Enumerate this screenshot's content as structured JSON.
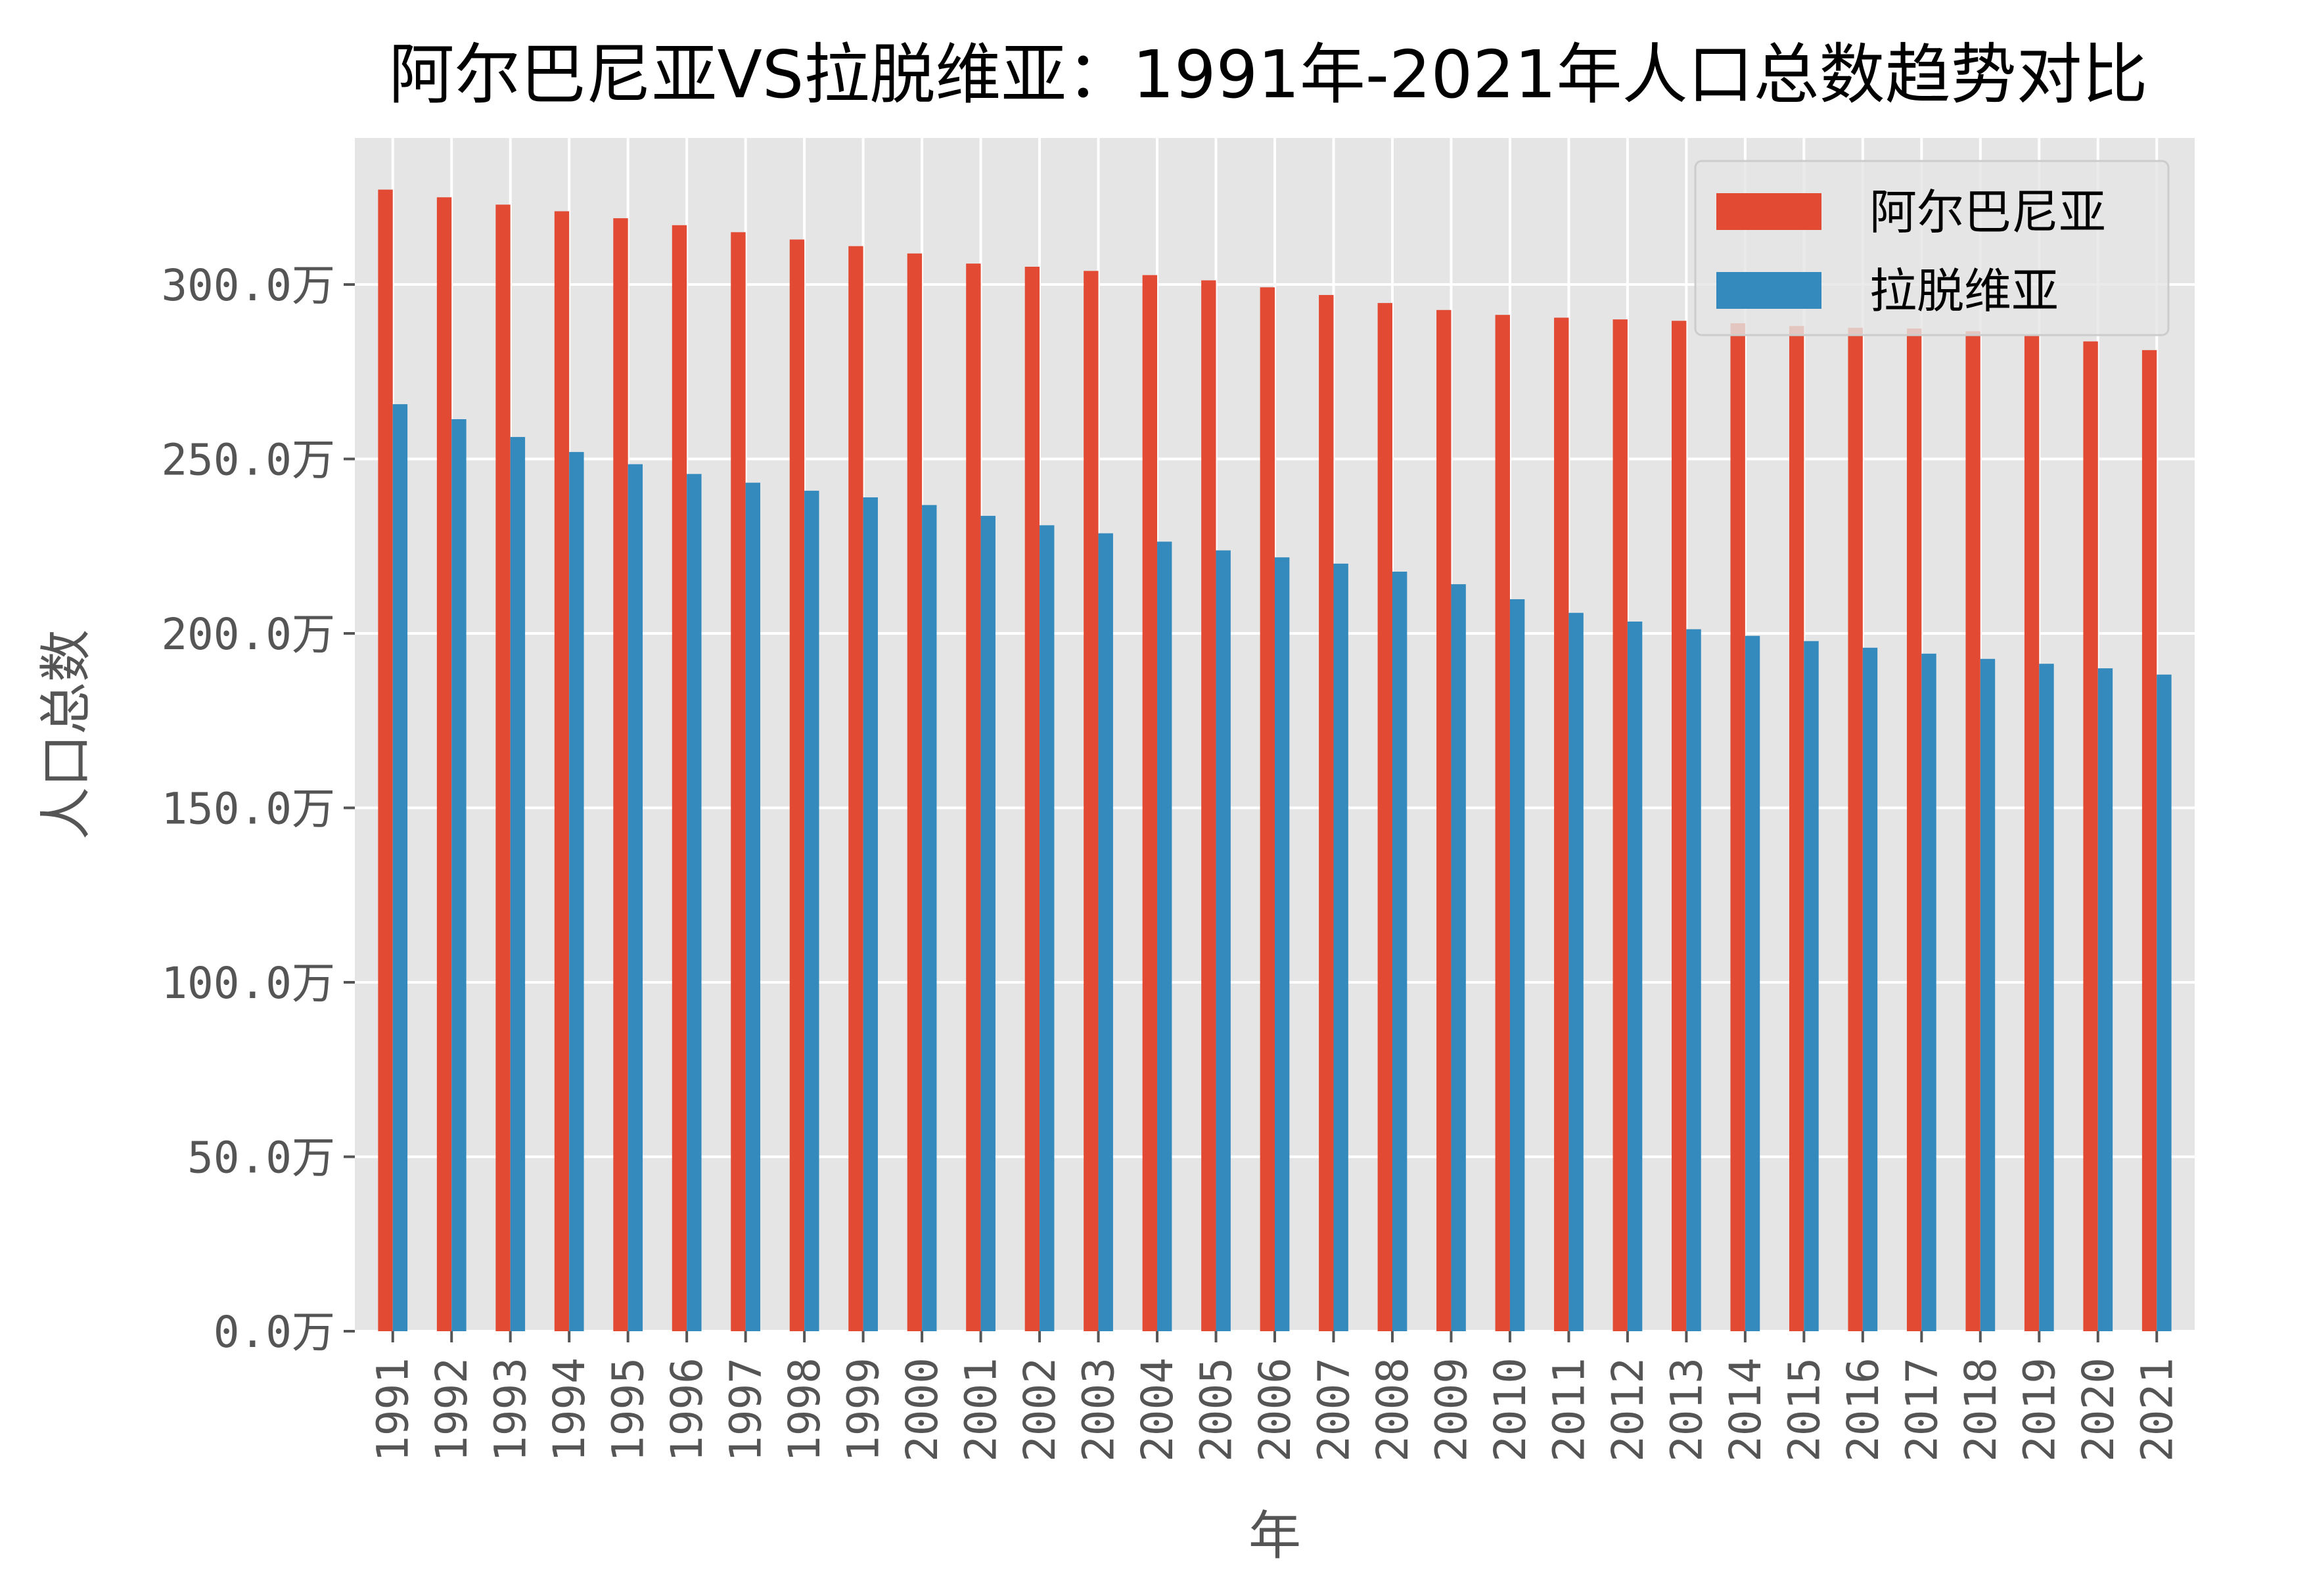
{
  "chart_data": {
    "type": "bar",
    "title": "阿尔巴尼亚VS拉脱维亚：1991年-2021年人口总数趋势对比",
    "xlabel": "年",
    "ylabel": "人口总数",
    "y_unit": "万",
    "ylim": [
      0,
      342
    ],
    "yticks": [
      0,
      50,
      100,
      150,
      200,
      250,
      300
    ],
    "ytick_labels": [
      "0.0万",
      "50.0万",
      "100.0万",
      "150.0万",
      "200.0万",
      "250.0万",
      "300.0万"
    ],
    "grid": true,
    "legend_position": "top-right",
    "categories": [
      "1991",
      "1992",
      "1993",
      "1994",
      "1995",
      "1996",
      "1997",
      "1998",
      "1999",
      "2000",
      "2001",
      "2002",
      "2003",
      "2004",
      "2005",
      "2006",
      "2007",
      "2008",
      "2009",
      "2010",
      "2011",
      "2012",
      "2013",
      "2014",
      "2015",
      "2016",
      "2017",
      "2018",
      "2019",
      "2020",
      "2021"
    ],
    "series": [
      {
        "name": "阿尔巴尼亚",
        "color": "#E24A33",
        "values": [
          327.2,
          325.0,
          322.9,
          321.0,
          319.0,
          317.0,
          315.0,
          312.9,
          311.0,
          308.9,
          306.0,
          305.1,
          303.9,
          302.7,
          301.2,
          299.2,
          297.0,
          294.7,
          292.7,
          291.3,
          290.5,
          290.0,
          289.6,
          288.9,
          288.1,
          287.6,
          287.4,
          286.6,
          285.4,
          283.7,
          281.2
        ]
      },
      {
        "name": "拉脱维亚",
        "color": "#348ABD",
        "values": [
          265.7,
          261.4,
          256.3,
          252.0,
          248.5,
          245.7,
          243.2,
          240.9,
          239.0,
          236.8,
          233.7,
          231.0,
          228.7,
          226.3,
          223.8,
          221.8,
          220.0,
          217.7,
          214.1,
          209.8,
          205.9,
          203.4,
          201.2,
          199.3,
          197.8,
          195.9,
          194.2,
          192.7,
          191.3,
          190.0,
          188.2
        ]
      }
    ]
  }
}
